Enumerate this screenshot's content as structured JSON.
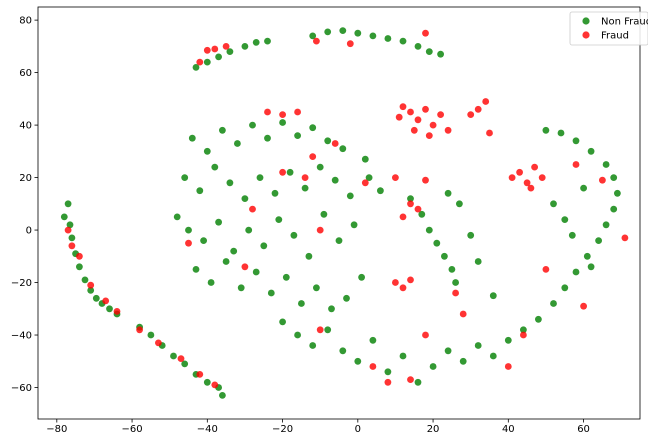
{
  "chart_data": {
    "type": "scatter",
    "title": "",
    "xlabel": "",
    "ylabel": "",
    "xlim": [
      -85,
      75
    ],
    "ylim": [
      -72,
      85
    ],
    "x_ticks": [
      -80,
      -60,
      -40,
      -20,
      0,
      20,
      40,
      60
    ],
    "y_ticks": [
      -60,
      -40,
      -20,
      0,
      20,
      40,
      60,
      80
    ],
    "grid": false,
    "legend_position": "top-right",
    "series": [
      {
        "name": "Non Fraud",
        "color": "#008000",
        "values": [
          [
            -78.0,
            5.0
          ],
          [
            -77.0,
            10.0
          ],
          [
            -76.5,
            2.0
          ],
          [
            -76.0,
            -3.0
          ],
          [
            -75.0,
            -9.0
          ],
          [
            -74.0,
            -14.0
          ],
          [
            -72.5,
            -19.0
          ],
          [
            -71.0,
            -23.0
          ],
          [
            -69.5,
            -26.0
          ],
          [
            -68.0,
            -28.0
          ],
          [
            -66.0,
            -30.0
          ],
          [
            -64.0,
            -32.0
          ],
          [
            -58.0,
            -37.0
          ],
          [
            -55.0,
            -40.0
          ],
          [
            -52.0,
            -44.0
          ],
          [
            -49.0,
            -48.0
          ],
          [
            -46.0,
            -51.0
          ],
          [
            -43.0,
            -55.0
          ],
          [
            -40.0,
            -58.0
          ],
          [
            -37.0,
            -60.0
          ],
          [
            -36.0,
            -63.0
          ],
          [
            -43.0,
            62.0
          ],
          [
            -40.0,
            64.0
          ],
          [
            -37.0,
            66.0
          ],
          [
            -34.0,
            68.0
          ],
          [
            -30.0,
            70.0
          ],
          [
            -27.0,
            71.5
          ],
          [
            -24.0,
            72.0
          ],
          [
            -12.0,
            74.0
          ],
          [
            -8.0,
            75.5
          ],
          [
            -4.0,
            76.0
          ],
          [
            0.0,
            75.0
          ],
          [
            4.0,
            74.0
          ],
          [
            8.0,
            73.0
          ],
          [
            12.0,
            72.0
          ],
          [
            16.0,
            70.0
          ],
          [
            19.0,
            68.0
          ],
          [
            22.0,
            67.0
          ],
          [
            -44.0,
            35.0
          ],
          [
            -40.0,
            30.0
          ],
          [
            -36.0,
            38.0
          ],
          [
            -32.0,
            33.0
          ],
          [
            -28.0,
            40.0
          ],
          [
            -24.0,
            35.0
          ],
          [
            -20.0,
            41.0
          ],
          [
            -16.0,
            36.0
          ],
          [
            -12.0,
            39.0
          ],
          [
            -8.0,
            34.0
          ],
          [
            -4.0,
            31.0
          ],
          [
            2.0,
            27.0
          ],
          [
            -46.0,
            20.0
          ],
          [
            -42.0,
            15.0
          ],
          [
            -38.0,
            24.0
          ],
          [
            -34.0,
            18.0
          ],
          [
            -30.0,
            12.0
          ],
          [
            -26.0,
            20.0
          ],
          [
            -22.0,
            14.0
          ],
          [
            -18.0,
            22.0
          ],
          [
            -14.0,
            16.0
          ],
          [
            -10.0,
            24.0
          ],
          [
            -6.0,
            19.0
          ],
          [
            -2.0,
            13.0
          ],
          [
            3.0,
            20.0
          ],
          [
            6.0,
            15.0
          ],
          [
            -48.0,
            5.0
          ],
          [
            -45.0,
            0.0
          ],
          [
            -41.0,
            -4.0
          ],
          [
            -37.0,
            3.0
          ],
          [
            -33.0,
            -8.0
          ],
          [
            -29.0,
            0.0
          ],
          [
            -25.0,
            -6.0
          ],
          [
            -21.0,
            4.0
          ],
          [
            -17.0,
            -2.0
          ],
          [
            -13.0,
            -10.0
          ],
          [
            -9.0,
            6.0
          ],
          [
            -5.0,
            -4.0
          ],
          [
            -1.0,
            2.0
          ],
          [
            -43.0,
            -15.0
          ],
          [
            -39.0,
            -20.0
          ],
          [
            -35.0,
            -12.0
          ],
          [
            -31.0,
            -22.0
          ],
          [
            -27.0,
            -16.0
          ],
          [
            -23.0,
            -24.0
          ],
          [
            -19.0,
            -18.0
          ],
          [
            -15.0,
            -28.0
          ],
          [
            -11.0,
            -22.0
          ],
          [
            -7.0,
            -30.0
          ],
          [
            -3.0,
            -26.0
          ],
          [
            1.0,
            -18.0
          ],
          [
            -20.0,
            -35.0
          ],
          [
            -16.0,
            -40.0
          ],
          [
            -12.0,
            -44.0
          ],
          [
            -8.0,
            -38.0
          ],
          [
            -4.0,
            -46.0
          ],
          [
            0.0,
            -50.0
          ],
          [
            4.0,
            -42.0
          ],
          [
            8.0,
            -54.0
          ],
          [
            12.0,
            -48.0
          ],
          [
            16.0,
            -58.0
          ],
          [
            20.0,
            -52.0
          ],
          [
            24.0,
            -46.0
          ],
          [
            28.0,
            -50.0
          ],
          [
            32.0,
            -44.0
          ],
          [
            36.0,
            -48.0
          ],
          [
            40.0,
            -42.0
          ],
          [
            44.0,
            -38.0
          ],
          [
            48.0,
            -34.0
          ],
          [
            52.0,
            -28.0
          ],
          [
            55.0,
            -22.0
          ],
          [
            58.0,
            -16.0
          ],
          [
            61.0,
            -10.0
          ],
          [
            64.0,
            -4.0
          ],
          [
            66.0,
            2.0
          ],
          [
            68.0,
            8.0
          ],
          [
            69.0,
            14.0
          ],
          [
            68.0,
            20.0
          ],
          [
            66.0,
            25.0
          ],
          [
            62.0,
            30.0
          ],
          [
            58.0,
            34.0
          ],
          [
            54.0,
            37.0
          ],
          [
            50.0,
            38.0
          ],
          [
            52.0,
            10.0
          ],
          [
            55.0,
            4.0
          ],
          [
            57.0,
            -2.0
          ],
          [
            60.0,
            16.0
          ],
          [
            62.0,
            -14.0
          ],
          [
            14.0,
            12.0
          ],
          [
            17.0,
            6.0
          ],
          [
            19.0,
            0.0
          ],
          [
            21.0,
            -5.0
          ],
          [
            23.0,
            -10.0
          ],
          [
            25.0,
            -15.0
          ],
          [
            26.0,
            -20.0
          ],
          [
            27.0,
            10.0
          ],
          [
            24.0,
            14.0
          ],
          [
            30.0,
            -2.0
          ],
          [
            32.0,
            -12.0
          ],
          [
            36.0,
            -25.0
          ]
        ]
      },
      {
        "name": "Fraud",
        "color": "#ff0000",
        "values": [
          [
            -38.0,
            69.0
          ],
          [
            -40.0,
            68.5
          ],
          [
            -35.0,
            70.0
          ],
          [
            -42.0,
            64.0
          ],
          [
            -2.0,
            71.0
          ],
          [
            -11.0,
            72.0
          ],
          [
            18.0,
            75.0
          ],
          [
            12.0,
            47.0
          ],
          [
            14.0,
            45.0
          ],
          [
            16.0,
            42.0
          ],
          [
            18.0,
            46.0
          ],
          [
            20.0,
            40.0
          ],
          [
            22.0,
            44.0
          ],
          [
            24.0,
            38.0
          ],
          [
            11.0,
            43.0
          ],
          [
            15.0,
            38.0
          ],
          [
            19.0,
            36.0
          ],
          [
            30.0,
            44.0
          ],
          [
            32.0,
            46.0
          ],
          [
            34.0,
            49.0
          ],
          [
            35.0,
            37.0
          ],
          [
            41.0,
            20.0
          ],
          [
            43.0,
            22.0
          ],
          [
            45.0,
            18.0
          ],
          [
            47.0,
            24.0
          ],
          [
            49.0,
            20.0
          ],
          [
            46.0,
            16.0
          ],
          [
            14.0,
            10.0
          ],
          [
            16.0,
            8.0
          ],
          [
            12.0,
            5.0
          ],
          [
            10.0,
            20.0
          ],
          [
            18.0,
            19.0
          ],
          [
            10.0,
            -20.0
          ],
          [
            12.0,
            -22.0
          ],
          [
            14.0,
            -19.0
          ],
          [
            18.0,
            -40.0
          ],
          [
            -77.0,
            0.0
          ],
          [
            -76.0,
            -6.0
          ],
          [
            -74.0,
            -10.0
          ],
          [
            -71.0,
            -21.0
          ],
          [
            -67.0,
            -27.0
          ],
          [
            -64.0,
            -31.0
          ],
          [
            -58.0,
            -38.0
          ],
          [
            -53.0,
            -43.0
          ],
          [
            -47.0,
            -49.0
          ],
          [
            -42.0,
            -55.0
          ],
          [
            -38.0,
            -59.0
          ],
          [
            -45.0,
            -5.0
          ],
          [
            -24.0,
            45.0
          ],
          [
            -20.0,
            44.0
          ],
          [
            -16.0,
            45.0
          ],
          [
            -12.0,
            28.0
          ],
          [
            -6.0,
            33.0
          ],
          [
            -28.0,
            8.0
          ],
          [
            -20.0,
            22.0
          ],
          [
            -14.0,
            20.0
          ],
          [
            -30.0,
            -14.0
          ],
          [
            -10.0,
            0.0
          ],
          [
            2.0,
            18.0
          ],
          [
            4.0,
            -52.0
          ],
          [
            8.0,
            -58.0
          ],
          [
            14.0,
            -57.0
          ],
          [
            40.0,
            -52.0
          ],
          [
            44.0,
            -40.0
          ],
          [
            50.0,
            -15.0
          ],
          [
            58.0,
            25.0
          ],
          [
            65.0,
            19.0
          ],
          [
            71.0,
            -3.0
          ],
          [
            60.0,
            -29.0
          ],
          [
            28.0,
            -32.0
          ],
          [
            26.0,
            -24.0
          ],
          [
            -10.0,
            -38.0
          ]
        ]
      }
    ]
  }
}
